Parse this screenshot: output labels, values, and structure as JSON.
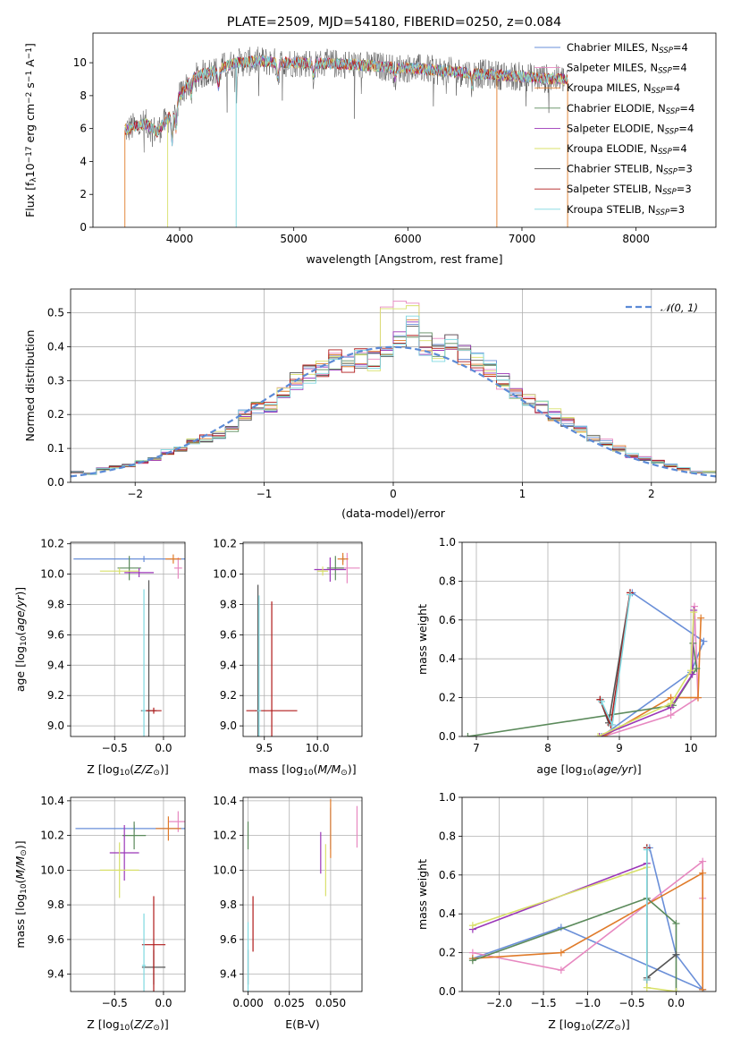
{
  "title": "PLATE=2509, MJD=54180, FIBERID=0250, z=0.084",
  "series_styles": [
    {
      "name": "Chabrier MILES, N$_{SSP}$=4",
      "name_main": "Chabrier MILES, N",
      "name_sub": "SSP",
      "name_tail": "=4",
      "color": "#6a8fd8"
    },
    {
      "name": "Salpeter MILES, N$_{SSP}$=4",
      "name_main": "Salpeter MILES, N",
      "name_sub": "SSP",
      "name_tail": "=4",
      "color": "#e788c0"
    },
    {
      "name": "Kroupa MILES, N$_{SSP}$=4",
      "name_main": "Kroupa MILES, N",
      "name_sub": "SSP",
      "name_tail": "=4",
      "color": "#e07b2a"
    },
    {
      "name": "Chabrier ELODIE, N$_{SSP}$=4",
      "name_main": "Chabrier ELODIE, N",
      "name_sub": "SSP",
      "name_tail": "=4",
      "color": "#5b8a5b"
    },
    {
      "name": "Salpeter ELODIE, N$_{SSP}$=4",
      "name_main": "Salpeter ELODIE, N",
      "name_sub": "SSP",
      "name_tail": "=4",
      "color": "#9b36b8"
    },
    {
      "name": "Kroupa ELODIE, N$_{SSP}$=4",
      "name_main": "Kroupa ELODIE, N",
      "name_sub": "SSP",
      "name_tail": "=4",
      "color": "#d8e06a"
    },
    {
      "name": "Chabrier STELIB, N$_{SSP}$=3",
      "name_main": "Chabrier STELIB, N",
      "name_sub": "SSP",
      "name_tail": "=3",
      "color": "#555555"
    },
    {
      "name": "Salpeter STELIB, N$_{SSP}$=3",
      "name_main": "Salpeter STELIB, N",
      "name_sub": "SSP",
      "name_tail": "=3",
      "color": "#b01a1a"
    },
    {
      "name": "Kroupa STELIB, N$_{SSP}$=3",
      "name_main": "Kroupa STELIB, N",
      "name_sub": "SSP",
      "name_tail": "=3",
      "color": "#7fd8e0"
    }
  ],
  "chart_data": [
    {
      "type": "line",
      "xlabel": "wavelength [Angstrom, rest frame]",
      "ylabel": "Flux [f$_\\lambda$10$^{-17}$ erg cm$^{-2}$ s$^{-1}$ A$^{-1}$]",
      "ylabel_parts": [
        "Flux [f",
        "λ",
        "10",
        "−17",
        " erg cm",
        "−2",
        " s",
        "−1",
        " A",
        "−1",
        "]"
      ],
      "xlim": [
        3240,
        8700
      ],
      "ylim": [
        0,
        11.8
      ],
      "xticks": [
        4000,
        5000,
        6000,
        7000,
        8000
      ],
      "yticks": [
        0,
        2,
        4,
        6,
        8,
        10
      ],
      "grid": false,
      "legend": "right",
      "spectrum_anchor_points": {
        "x": [
          3520,
          3600,
          3700,
          3800,
          3900,
          4000,
          4100,
          4200,
          4300,
          4400,
          4500,
          4700,
          4900,
          5100,
          5300,
          5500,
          5700,
          5900,
          6100,
          6300,
          6500,
          6700,
          6900,
          7100,
          7300,
          7400
        ],
        "y": [
          5.9,
          6.1,
          6.3,
          5.8,
          6.6,
          8.0,
          9.0,
          9.3,
          9.5,
          9.8,
          10.0,
          10.1,
          10.0,
          10.0,
          9.95,
          9.9,
          9.8,
          9.7,
          9.65,
          9.5,
          9.4,
          9.3,
          9.2,
          9.1,
          9.0,
          9.0
        ]
      }
    },
    {
      "type": "histogram",
      "xlabel": "(data-model)/error",
      "ylabel": "Normed distribution",
      "xlim": [
        -2.5,
        2.5
      ],
      "ylim": [
        0,
        0.57
      ],
      "xticks": [
        -2,
        -1,
        0,
        1,
        2
      ],
      "yticks": [
        0.0,
        0.1,
        0.2,
        0.3,
        0.4,
        0.5
      ],
      "xtick_labels": [
        "−2",
        "−1",
        "0",
        "1",
        "2"
      ],
      "yticklabels": [
        "0.0",
        "0.1",
        "0.2",
        "0.3",
        "0.4",
        "0.5"
      ],
      "grid": true,
      "legend": "top-right",
      "gaussian_label": "𝒩(0, 1)",
      "bin_width": 0.1,
      "bin_starts": [
        -2.5,
        -2.4,
        -2.3,
        -2.2,
        -2.1,
        -2.0,
        -1.9,
        -1.8,
        -1.7,
        -1.6,
        -1.5,
        -1.4,
        -1.3,
        -1.2,
        -1.1,
        -1.0,
        -0.9,
        -0.8,
        -0.7,
        -0.6,
        -0.5,
        -0.4,
        -0.3,
        -0.2,
        -0.1,
        0.0,
        0.1,
        0.2,
        0.3,
        0.4,
        0.5,
        0.6,
        0.7,
        0.8,
        0.9,
        1.0,
        1.1,
        1.2,
        1.3,
        1.4,
        1.5,
        1.6,
        1.7,
        1.8,
        1.9,
        2.0,
        2.1,
        2.2,
        2.3,
        2.4
      ],
      "representative_values": [
        0.03,
        0.025,
        0.04,
        0.045,
        0.05,
        0.06,
        0.07,
        0.09,
        0.1,
        0.12,
        0.13,
        0.14,
        0.16,
        0.2,
        0.22,
        0.22,
        0.26,
        0.3,
        0.32,
        0.34,
        0.36,
        0.35,
        0.37,
        0.36,
        0.38,
        0.42,
        0.46,
        0.41,
        0.39,
        0.4,
        0.38,
        0.36,
        0.33,
        0.3,
        0.27,
        0.24,
        0.22,
        0.2,
        0.18,
        0.16,
        0.13,
        0.12,
        0.1,
        0.08,
        0.07,
        0.06,
        0.05,
        0.04,
        0.03,
        0.03
      ]
    },
    {
      "type": "errorbar",
      "xlabel": "Z [log$_{10}$($Z/Z_\\odot$)]",
      "ylabel": "age  [log$_{10}$($age/yr$)]",
      "xlabel_parts": [
        "Z [log",
        "10",
        "(",
        "Z/Z",
        "⊙",
        ")]"
      ],
      "ylabel_parts": [
        "age  [log",
        "10",
        "(",
        "age/yr",
        ")]"
      ],
      "xlim": [
        -0.95,
        0.22
      ],
      "ylim": [
        8.93,
        10.21
      ],
      "xticks": [
        -0.5,
        0.0
      ],
      "yticks": [
        9.0,
        9.2,
        9.4,
        9.6,
        9.8,
        10.0,
        10.2
      ],
      "xtick_labels": [
        "−0.5",
        "0.0"
      ],
      "yticklabels": [
        "9.0",
        "9.2",
        "9.4",
        "9.6",
        "9.8",
        "10.0",
        "10.2"
      ],
      "grid": true,
      "points": [
        {
          "series": 0,
          "x": -0.2,
          "y": 10.1,
          "xerr": 0.72,
          "yerr": 0.02
        },
        {
          "series": 1,
          "x": 0.15,
          "y": 10.04,
          "xerr": 0.04,
          "yerr": 0.07
        },
        {
          "series": 2,
          "x": 0.1,
          "y": 10.1,
          "xerr": 0.08,
          "yerr": 0.03
        },
        {
          "series": 3,
          "x": -0.35,
          "y": 10.04,
          "xerr": 0.12,
          "yerr": 0.08
        },
        {
          "series": 4,
          "x": -0.25,
          "y": 10.01,
          "xerr": 0.15,
          "yerr": 0.03
        },
        {
          "series": 5,
          "x": -0.45,
          "y": 10.02,
          "xerr": 0.2,
          "yerr": 0.02
        },
        {
          "series": 6,
          "x": -0.15,
          "y": 9.1,
          "xerr": 0.08,
          "yerr": 0.86
        },
        {
          "series": 7,
          "x": -0.1,
          "y": 9.1,
          "xerr": 0.08,
          "yerr": 0.02
        },
        {
          "series": 8,
          "x": -0.2,
          "y": 9.1,
          "xerr": 0.02,
          "yerr": 0.8
        }
      ]
    },
    {
      "type": "errorbar",
      "xlabel": "mass [log$_{10}$($M/M_\\odot$)]",
      "xlabel_parts": [
        "mass [log",
        "10",
        "(",
        "M/M",
        "⊙",
        ")]"
      ],
      "xlim": [
        9.3,
        10.42
      ],
      "ylim": [
        8.93,
        10.21
      ],
      "xticks": [
        9.5,
        10.0
      ],
      "yticks": [
        9.0,
        9.2,
        9.4,
        9.6,
        9.8,
        10.0,
        10.2
      ],
      "xtick_labels": [
        "9.5",
        "10.0"
      ],
      "yticklabels": [
        "9.0",
        "9.2",
        "9.4",
        "9.6",
        "9.8",
        "10.0",
        "10.2"
      ],
      "grid": true,
      "points": [
        {
          "series": 0,
          "x": 10.24,
          "y": 10.1,
          "xerr": 0.02,
          "yerr": 0.02
        },
        {
          "series": 1,
          "x": 10.28,
          "y": 10.04,
          "xerr": 0.12,
          "yerr": 0.1
        },
        {
          "series": 2,
          "x": 10.24,
          "y": 10.1,
          "xerr": 0.05,
          "yerr": 0.04
        },
        {
          "series": 3,
          "x": 10.17,
          "y": 10.04,
          "xerr": 0.08,
          "yerr": 0.08
        },
        {
          "series": 4,
          "x": 10.12,
          "y": 10.03,
          "xerr": 0.15,
          "yerr": 0.08
        },
        {
          "series": 5,
          "x": 10.05,
          "y": 10.02,
          "xerr": 0.05,
          "yerr": 0.03
        },
        {
          "series": 6,
          "x": 9.44,
          "y": 9.1,
          "xerr": 0.02,
          "yerr": 0.83
        },
        {
          "series": 7,
          "x": 9.57,
          "y": 9.1,
          "xerr": 0.24,
          "yerr": 0.72
        },
        {
          "series": 8,
          "x": 9.45,
          "y": 9.1,
          "xerr": 0.02,
          "yerr": 0.76
        }
      ]
    },
    {
      "type": "line",
      "xlabel": "age  [log$_{10}$($age/yr$)]",
      "ylabel": "mass weight",
      "xlabel_parts": [
        "age  [log",
        "10",
        "(",
        "age/yr",
        ")]"
      ],
      "xlim": [
        6.8,
        10.35
      ],
      "ylim": [
        0,
        1.0
      ],
      "xticks": [
        7,
        8,
        9,
        10
      ],
      "yticks": [
        0.0,
        0.2,
        0.4,
        0.6,
        0.8,
        1.0
      ],
      "xtick_labels": [
        "7",
        "8",
        "9",
        "10"
      ],
      "yticklabels": [
        "0.0",
        "0.2",
        "0.4",
        "0.6",
        "0.8",
        "1.0"
      ],
      "grid": true,
      "series": [
        {
          "series": 0,
          "x": [
            8.75,
            10.0,
            10.18,
            9.18
          ],
          "y": [
            0.0,
            0.33,
            0.49,
            0.74
          ]
        },
        {
          "series": 1,
          "x": [
            8.78,
            9.72,
            10.1,
            10.05
          ],
          "y": [
            0.0,
            0.11,
            0.2,
            0.67
          ]
        },
        {
          "series": 2,
          "x": [
            8.78,
            9.72,
            10.1,
            10.14
          ],
          "y": [
            0.0,
            0.2,
            0.2,
            0.61
          ]
        },
        {
          "series": 3,
          "x": [
            6.88,
            9.75,
            10.08,
            10.03
          ],
          "y": [
            0.0,
            0.16,
            0.35,
            0.48
          ]
        },
        {
          "series": 4,
          "x": [
            8.72,
            9.72,
            10.02,
            10.04
          ],
          "y": [
            0.0,
            0.15,
            0.32,
            0.65
          ]
        },
        {
          "series": 5,
          "x": [
            8.7,
            9.72,
            10.0,
            10.04
          ],
          "y": [
            0.0,
            0.17,
            0.34,
            0.64
          ]
        },
        {
          "series": 6,
          "x": [
            8.73,
            8.85,
            9.15
          ],
          "y": [
            0.19,
            0.07,
            0.74
          ]
        },
        {
          "series": 7,
          "x": [
            8.73,
            8.88,
            9.15
          ],
          "y": [
            0.19,
            0.06,
            0.74
          ]
        },
        {
          "series": 8,
          "x": [
            8.75,
            8.9,
            9.15
          ],
          "y": [
            0.18,
            0.06,
            0.73
          ]
        }
      ]
    },
    {
      "type": "errorbar",
      "xlabel": "Z [log$_{10}$($Z/Z_\\odot$)]",
      "ylabel": "mass [log$_{10}$($M/M_\\odot$)]",
      "xlabel_parts": [
        "Z [log",
        "10",
        "(",
        "Z/Z",
        "⊙",
        ")]"
      ],
      "ylabel_parts": [
        "mass [log",
        "10",
        "(",
        "M/M",
        "⊙",
        ")]"
      ],
      "xlim": [
        -0.95,
        0.22
      ],
      "ylim": [
        9.3,
        10.42
      ],
      "xticks": [
        -0.5,
        0.0
      ],
      "yticks": [
        9.4,
        9.6,
        9.8,
        10.0,
        10.2,
        10.4
      ],
      "xtick_labels": [
        "−0.5",
        "0.0"
      ],
      "yticklabels": [
        "9.4",
        "9.6",
        "9.8",
        "10.0",
        "10.2",
        "10.4"
      ],
      "grid": true,
      "points": [
        {
          "series": 0,
          "x": -0.3,
          "y": 10.24,
          "xerr": 0.6,
          "yerr": 0.02
        },
        {
          "series": 1,
          "x": 0.15,
          "y": 10.28,
          "xerr": 0.1,
          "yerr": 0.06
        },
        {
          "series": 2,
          "x": 0.05,
          "y": 10.24,
          "xerr": 0.13,
          "yerr": 0.07
        },
        {
          "series": 3,
          "x": -0.3,
          "y": 10.2,
          "xerr": 0.12,
          "yerr": 0.08
        },
        {
          "series": 4,
          "x": -0.4,
          "y": 10.1,
          "xerr": 0.15,
          "yerr": 0.16
        },
        {
          "series": 5,
          "x": -0.45,
          "y": 10.0,
          "xerr": 0.2,
          "yerr": 0.16
        },
        {
          "series": 6,
          "x": -0.1,
          "y": 9.44,
          "xerr": 0.12,
          "yerr": 0.1
        },
        {
          "series": 7,
          "x": -0.1,
          "y": 9.57,
          "xerr": 0.12,
          "yerr": 0.28
        },
        {
          "series": 8,
          "x": -0.2,
          "y": 9.45,
          "xerr": 0.02,
          "yerr": 0.3
        }
      ]
    },
    {
      "type": "errorbar",
      "xlabel": "E(B-V)",
      "xlim": [
        -0.003,
        0.069
      ],
      "ylim": [
        9.3,
        10.42
      ],
      "xticks": [
        0.0,
        0.025,
        0.05
      ],
      "yticks": [
        9.4,
        9.6,
        9.8,
        10.0,
        10.2,
        10.4
      ],
      "xtick_labels": [
        "0.000",
        "0.025",
        "0.050"
      ],
      "yticklabels": [
        "9.4",
        "9.6",
        "9.8",
        "10.0",
        "10.2",
        "10.4"
      ],
      "grid": true,
      "points": [
        {
          "series": 0,
          "x": 0.05,
          "y": 10.24,
          "xerr": 0.0,
          "yerr": 0.12
        },
        {
          "series": 1,
          "x": 0.066,
          "y": 10.25,
          "xerr": 0.0,
          "yerr": 0.12
        },
        {
          "series": 2,
          "x": 0.05,
          "y": 10.24,
          "xerr": 0.0,
          "yerr": 0.17
        },
        {
          "series": 3,
          "x": 0.0,
          "y": 10.2,
          "xerr": 0.0,
          "yerr": 0.08
        },
        {
          "series": 4,
          "x": 0.044,
          "y": 10.1,
          "xerr": 0.0,
          "yerr": 0.12
        },
        {
          "series": 5,
          "x": 0.047,
          "y": 10.0,
          "xerr": 0.0,
          "yerr": 0.15
        },
        {
          "series": 6,
          "x": 0.0,
          "y": 9.44,
          "xerr": 0.0,
          "yerr": 0.1
        },
        {
          "series": 7,
          "x": 0.003,
          "y": 9.69,
          "xerr": 0.0,
          "yerr": 0.16
        },
        {
          "series": 8,
          "x": 0.0,
          "y": 9.5,
          "xerr": 0.0,
          "yerr": 0.2
        }
      ]
    },
    {
      "type": "line",
      "xlabel": "Z [log$_{10}$($Z/Z_\\odot$)]",
      "ylabel": "mass weight",
      "xlabel_parts": [
        "Z [log",
        "10",
        "(",
        "Z/Z",
        "⊙",
        ")]"
      ],
      "xlim": [
        -2.42,
        0.45
      ],
      "ylim": [
        0,
        1.0
      ],
      "xticks": [
        -2.0,
        -1.5,
        -1.0,
        -0.5,
        0.0
      ],
      "yticks": [
        0.0,
        0.2,
        0.4,
        0.6,
        0.8,
        1.0
      ],
      "xtick_labels": [
        "−2.0",
        "−1.5",
        "−1.0",
        "−0.5",
        "0.0"
      ],
      "yticklabels": [
        "0.0",
        "0.2",
        "0.4",
        "0.6",
        "0.8",
        "1.0"
      ],
      "grid": true,
      "series": [
        {
          "series": 0,
          "x": [
            -2.3,
            -1.3,
            0.3,
            0.0,
            -0.3
          ],
          "y": [
            0.17,
            0.33,
            0.01,
            0.19,
            0.74
          ]
        },
        {
          "series": 1,
          "x": [
            -2.3,
            -1.3,
            0.3,
            0.3
          ],
          "y": [
            0.2,
            0.11,
            0.67,
            0.48
          ]
        },
        {
          "series": 2,
          "x": [
            -2.3,
            -1.3,
            0.3,
            0.3
          ],
          "y": [
            0.17,
            0.2,
            0.61,
            0.01
          ]
        },
        {
          "series": 3,
          "x": [
            -2.3,
            -0.33,
            0.0,
            0.0
          ],
          "y": [
            0.16,
            0.48,
            0.35,
            0.0
          ]
        },
        {
          "series": 4,
          "x": [
            -2.3,
            -0.33
          ],
          "y": [
            0.32,
            0.66
          ]
        },
        {
          "series": 5,
          "x": [
            -2.3,
            -0.33,
            -0.33,
            0.0
          ],
          "y": [
            0.34,
            0.64,
            0.02,
            0.0
          ]
        },
        {
          "series": 6,
          "x": [
            -0.33,
            -0.33,
            0.0
          ],
          "y": [
            0.74,
            0.07,
            0.19
          ]
        },
        {
          "series": 7,
          "x": [
            -0.33,
            -0.33
          ],
          "y": [
            0.74,
            0.06
          ]
        },
        {
          "series": 8,
          "x": [
            -0.33,
            -0.33
          ],
          "y": [
            0.73,
            0.06
          ]
        }
      ]
    }
  ]
}
